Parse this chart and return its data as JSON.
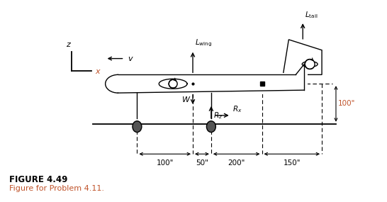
{
  "title": "FIGURE 4.49",
  "subtitle": "Figure for Problem 4.11.",
  "title_color": "#000000",
  "subtitle_color": "#c0532a",
  "bg_color": "#ffffff",
  "figsize": [
    5.46,
    2.85
  ],
  "dpi": 100
}
